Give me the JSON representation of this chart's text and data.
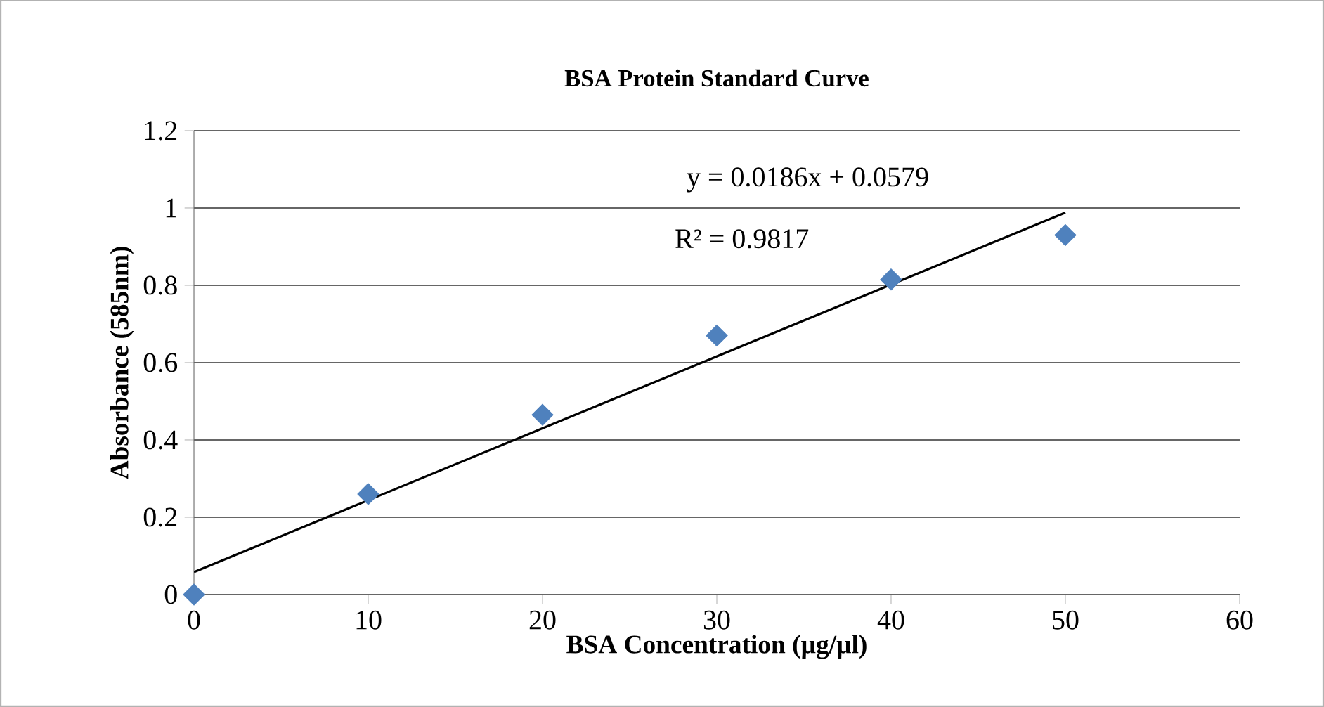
{
  "chart_data": {
    "type": "scatter",
    "title": "BSA Protein Standard Curve",
    "xlabel": "BSA Concentration (µg/µl)",
    "ylabel": "Absorbance (585nm)",
    "x": [
      0,
      10,
      20,
      30,
      40,
      50
    ],
    "series": [
      {
        "color": "#4f81bd",
        "marker": "diamond",
        "values": [
          0,
          0.26,
          0.465,
          0.67,
          0.815,
          0.93
        ]
      },
      {
        "type": "line",
        "color": "#000000",
        "x": [
          0,
          50
        ],
        "values": [
          0.058,
          0.988
        ]
      }
    ],
    "grid": "y",
    "legend": false,
    "xlim": [
      0,
      60
    ],
    "xticks": [
      0,
      10,
      20,
      30,
      40,
      50,
      60
    ],
    "ylim": [
      0,
      1.2
    ],
    "yticks": [
      0,
      0.2,
      0.4,
      0.6,
      0.8,
      1,
      1.2
    ],
    "annotations": [
      "y = 0.0186x + 0.0579",
      "R² = 0.9817"
    ]
  }
}
